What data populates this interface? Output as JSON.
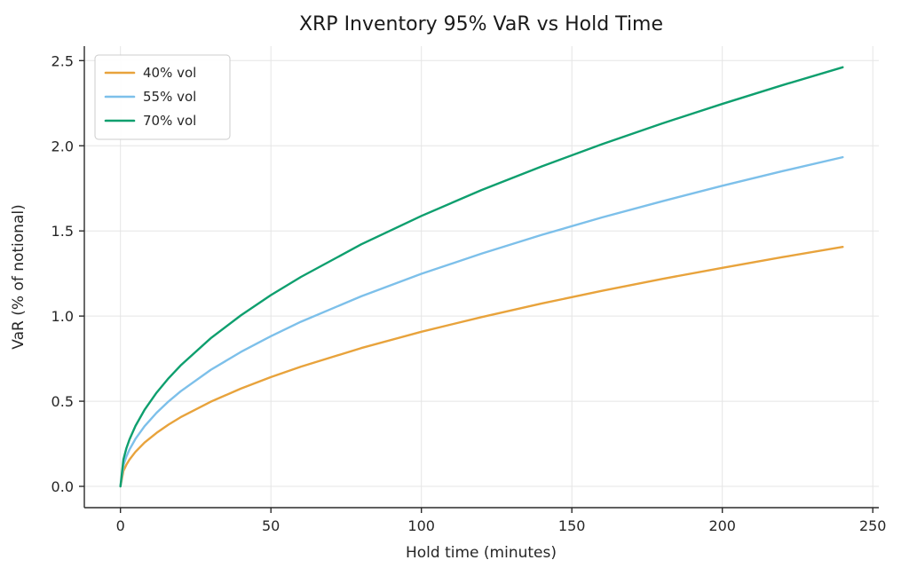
{
  "chart_data": {
    "type": "line",
    "title": "XRP Inventory 95% VaR vs Hold Time",
    "xlabel": "Hold time (minutes)",
    "ylabel": "VaR (% of notional)",
    "xlim": [
      -12,
      252
    ],
    "ylim": [
      -0.125,
      2.585
    ],
    "xticks": [
      0,
      50,
      100,
      150,
      200,
      250
    ],
    "xtick_labels": [
      "0",
      "50",
      "100",
      "150",
      "200",
      "250"
    ],
    "yticks": [
      0.0,
      0.5,
      1.0,
      1.5,
      2.0,
      2.5
    ],
    "ytick_labels": [
      "0.0",
      "0.5",
      "1.0",
      "1.5",
      "2.0",
      "2.5"
    ],
    "grid": true,
    "grid_color": "#e5e5e5",
    "spine_color": "#2b2b2b",
    "legend_position": "upper left",
    "x": [
      0,
      1,
      2,
      3,
      5,
      8,
      12,
      16,
      20,
      30,
      40,
      50,
      60,
      80,
      100,
      120,
      140,
      160,
      180,
      200,
      220,
      240
    ],
    "series": [
      {
        "name": "40% vol",
        "color": "#E8A33C",
        "values": [
          0,
          0.091,
          0.128,
          0.157,
          0.203,
          0.257,
          0.314,
          0.363,
          0.406,
          0.497,
          0.574,
          0.642,
          0.703,
          0.812,
          0.908,
          0.994,
          1.074,
          1.148,
          1.218,
          1.283,
          1.346,
          1.406
        ]
      },
      {
        "name": "55% vol",
        "color": "#7DC0EA",
        "values": [
          0,
          0.125,
          0.176,
          0.216,
          0.279,
          0.353,
          0.432,
          0.499,
          0.558,
          0.684,
          0.789,
          0.882,
          0.967,
          1.116,
          1.248,
          1.367,
          1.477,
          1.579,
          1.674,
          1.765,
          1.851,
          1.933
        ]
      },
      {
        "name": "70% vol",
        "color": "#0E9F6E",
        "values": [
          0,
          0.159,
          0.225,
          0.275,
          0.355,
          0.449,
          0.55,
          0.635,
          0.71,
          0.87,
          1.004,
          1.123,
          1.23,
          1.421,
          1.588,
          1.74,
          1.879,
          2.009,
          2.131,
          2.246,
          2.356,
          2.461
        ]
      }
    ]
  }
}
